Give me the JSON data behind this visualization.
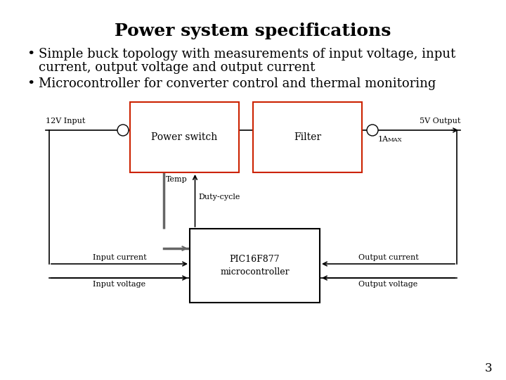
{
  "title": "Power system specifications",
  "bullet1_line1": "Simple buck topology with measurements of input voltage, input",
  "bullet1_line2": "current, output voltage and output current",
  "bullet2": "Microcontroller for converter control and thermal monitoring",
  "background_color": "#ffffff",
  "title_fontsize": 18,
  "bullet_fontsize": 13,
  "page_number": "3",
  "label_12v": "12V Input",
  "label_5v": "5V Output",
  "label_1a": "1A",
  "label_max": "MAX",
  "label_duty": "Duty-cycle",
  "label_temp": "Temp",
  "label_input_current": "Input current",
  "label_input_voltage": "Input voltage",
  "label_output_current": "Output current",
  "label_output_voltage": "Output voltage",
  "label_power_switch": "Power switch",
  "label_filter": "Filter",
  "label_pic": "PIC16F877\nmicrocontroller"
}
